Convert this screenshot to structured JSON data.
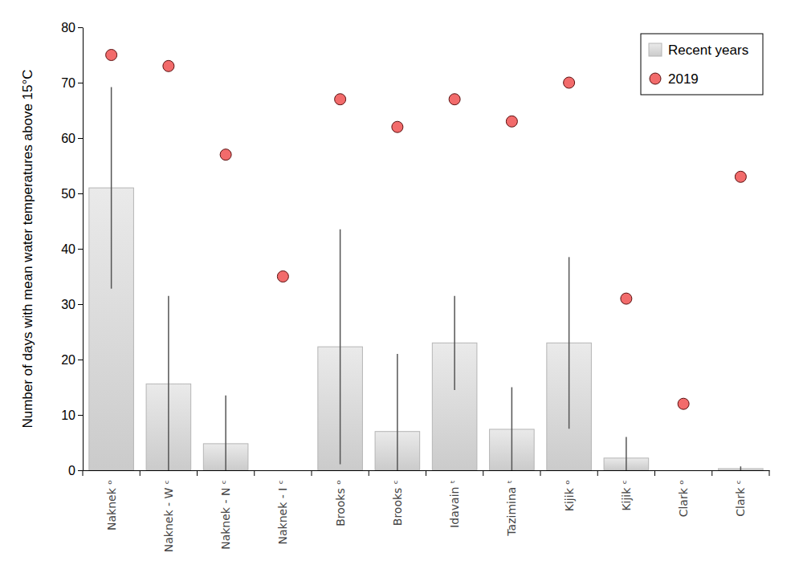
{
  "chart_data": {
    "type": "bar",
    "y_label": "Number of days with mean water temperatures above 15°C",
    "categories": [
      "Naknek ᵒ",
      "Naknek - W ᶜ",
      "Naknek - N ᶜ",
      "Naknek - I ᶜ",
      "Brooks ᵒ",
      "Brooks ᶜ",
      "Idavain ᵗ",
      "Tazimina ᵗ",
      "Kijik ᵒ",
      "Kijik ᶜ",
      "Clark ᵒ",
      "Clark ᶜ"
    ],
    "series": [
      {
        "name": "Recent years",
        "type": "bar",
        "color": "#dedede",
        "values": [
          51,
          15.6,
          4.8,
          0,
          22.3,
          7,
          23,
          7.4,
          23,
          2.2,
          0,
          0.3
        ],
        "errors": [
          18.2,
          15.9,
          8.7,
          null,
          21.2,
          14,
          8.5,
          7.6,
          15.5,
          3.8,
          null,
          0.4
        ]
      },
      {
        "name": "2019",
        "type": "scatter",
        "color": "#f26b6b",
        "marker": "circle",
        "values": [
          75,
          73,
          57,
          35,
          67,
          62,
          67,
          63,
          70,
          31,
          12,
          53
        ]
      }
    ],
    "ylim": [
      0,
      80
    ],
    "yticks": [
      0,
      10,
      20,
      30,
      40,
      50,
      60,
      70,
      80
    ],
    "grid": false,
    "legend": "upper right"
  }
}
